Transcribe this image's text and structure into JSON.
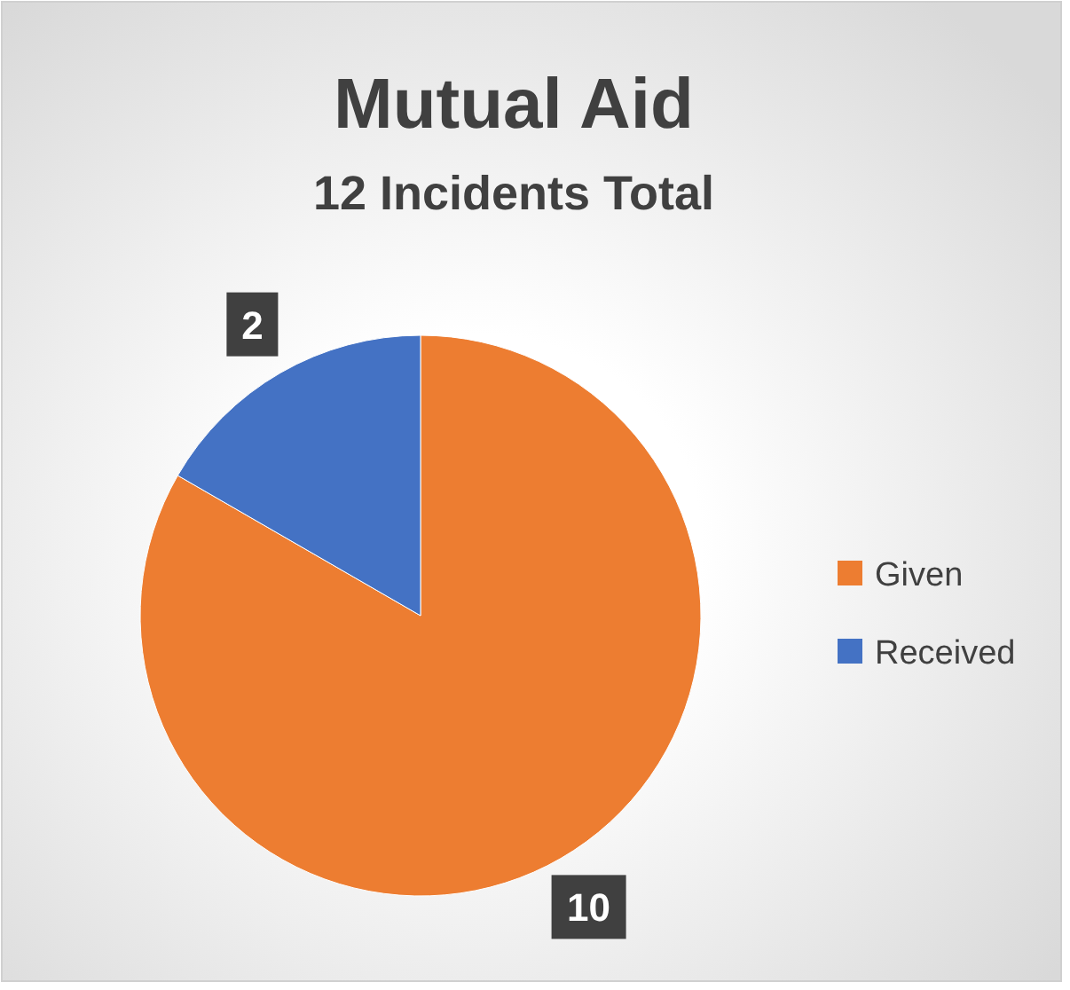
{
  "chart_data": {
    "type": "pie",
    "title": "Mutual Aid",
    "subtitle": "12 Incidents Total",
    "categories": [
      "Given",
      "Received"
    ],
    "values": [
      10,
      2
    ],
    "colors": [
      "#ed7d31",
      "#4472c4"
    ],
    "data_labels": true,
    "legend": "right"
  }
}
